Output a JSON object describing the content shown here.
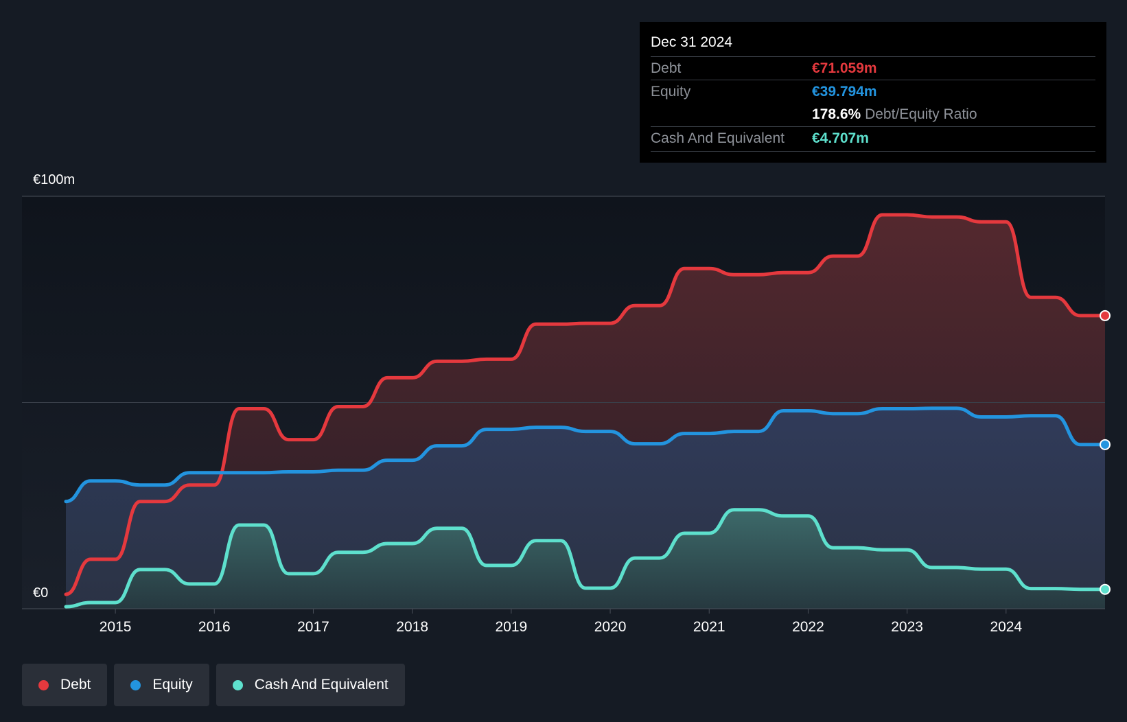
{
  "chart_data": {
    "type": "area",
    "y_axis": {
      "top_label": "€100m",
      "bottom_label": "€0",
      "ylim": [
        0,
        100
      ]
    },
    "x_ticks": [
      "2015",
      "2016",
      "2017",
      "2018",
      "2019",
      "2020",
      "2021",
      "2022",
      "2023",
      "2024"
    ],
    "x_tick_values": [
      2015,
      2016,
      2017,
      2018,
      2019,
      2020,
      2021,
      2022,
      2023,
      2024
    ],
    "xlim": [
      2014.5,
      2025.0
    ],
    "series": [
      {
        "name": "Debt",
        "color": "#e5393e",
        "x": [
          2014.5,
          2014.75,
          2015.0,
          2015.25,
          2015.5,
          2015.75,
          2016.0,
          2016.25,
          2016.5,
          2016.75,
          2017.0,
          2017.25,
          2017.5,
          2017.75,
          2018.0,
          2018.25,
          2018.5,
          2018.75,
          2019.0,
          2019.25,
          2019.5,
          2019.75,
          2020.0,
          2020.25,
          2020.5,
          2020.75,
          2021.0,
          2021.25,
          2021.5,
          2021.75,
          2022.0,
          2022.25,
          2022.5,
          2022.75,
          2023.0,
          2023.25,
          2023.5,
          2023.75,
          2024.0,
          2024.25,
          2024.5,
          2024.75,
          2025.0
        ],
        "values": [
          3.5,
          12.0,
          12.0,
          26.0,
          26.0,
          30.0,
          30.0,
          48.5,
          48.5,
          41.0,
          41.0,
          49.0,
          49.0,
          56.0,
          56.0,
          60.0,
          60.0,
          60.5,
          60.5,
          69.0,
          69.0,
          69.2,
          69.2,
          73.5,
          73.5,
          82.5,
          82.5,
          81.0,
          81.0,
          81.5,
          81.5,
          85.5,
          85.5,
          95.5,
          95.5,
          95.0,
          95.0,
          93.8,
          93.8,
          75.5,
          75.5,
          71.059,
          71.059
        ]
      },
      {
        "name": "Equity",
        "color": "#2394df",
        "x": [
          2014.5,
          2014.75,
          2015.0,
          2015.25,
          2015.5,
          2015.75,
          2016.0,
          2016.25,
          2016.5,
          2016.75,
          2017.0,
          2017.25,
          2017.5,
          2017.75,
          2018.0,
          2018.25,
          2018.5,
          2018.75,
          2019.0,
          2019.25,
          2019.5,
          2019.75,
          2020.0,
          2020.25,
          2020.5,
          2020.75,
          2021.0,
          2021.25,
          2021.5,
          2021.75,
          2022.0,
          2022.25,
          2022.5,
          2022.75,
          2023.0,
          2023.25,
          2023.5,
          2023.75,
          2024.0,
          2024.25,
          2024.5,
          2024.75,
          2025.0
        ],
        "values": [
          26.0,
          31.0,
          31.0,
          30.0,
          30.0,
          33.0,
          33.0,
          33.0,
          33.0,
          33.2,
          33.2,
          33.6,
          33.6,
          36.0,
          36.0,
          39.5,
          39.5,
          43.5,
          43.5,
          44.0,
          44.0,
          43.0,
          43.0,
          40.0,
          40.0,
          42.5,
          42.5,
          43.0,
          43.0,
          48.0,
          48.0,
          47.3,
          47.3,
          48.5,
          48.5,
          48.6,
          48.6,
          46.5,
          46.5,
          46.8,
          46.8,
          39.794,
          39.794
        ]
      },
      {
        "name": "Cash And Equivalent",
        "color": "#5ee0cd",
        "x": [
          2014.5,
          2014.75,
          2015.0,
          2015.25,
          2015.5,
          2015.75,
          2016.0,
          2016.25,
          2016.5,
          2016.75,
          2017.0,
          2017.25,
          2017.5,
          2017.75,
          2018.0,
          2018.25,
          2018.5,
          2018.75,
          2019.0,
          2019.25,
          2019.5,
          2019.75,
          2020.0,
          2020.25,
          2020.5,
          2020.75,
          2021.0,
          2021.25,
          2021.5,
          2021.75,
          2022.0,
          2022.25,
          2022.5,
          2022.75,
          2023.0,
          2023.25,
          2023.5,
          2023.75,
          2024.0,
          2024.25,
          2024.5,
          2024.75,
          2025.0
        ],
        "values": [
          0.5,
          1.5,
          1.5,
          9.5,
          9.5,
          6.0,
          6.0,
          20.3,
          20.3,
          8.5,
          8.5,
          13.7,
          13.7,
          15.8,
          15.8,
          19.5,
          19.5,
          10.5,
          10.5,
          16.5,
          16.5,
          5.0,
          5.0,
          12.3,
          12.3,
          18.3,
          18.3,
          24.0,
          24.0,
          22.5,
          22.5,
          14.8,
          14.8,
          14.3,
          14.3,
          10.0,
          10.0,
          9.6,
          9.6,
          4.9,
          4.9,
          4.707,
          4.707
        ]
      }
    ]
  },
  "tooltip": {
    "date": "Dec 31 2024",
    "debt_label": "Debt",
    "debt_value": "€71.059m",
    "equity_label": "Equity",
    "equity_value": "€39.794m",
    "ratio_value": "178.6%",
    "ratio_label": "Debt/Equity Ratio",
    "cash_label": "Cash And Equivalent",
    "cash_value": "€4.707m"
  },
  "legend": [
    {
      "label": "Debt",
      "color": "#e5393e"
    },
    {
      "label": "Equity",
      "color": "#2394df"
    },
    {
      "label": "Cash And Equivalent",
      "color": "#5ee0cd"
    }
  ]
}
